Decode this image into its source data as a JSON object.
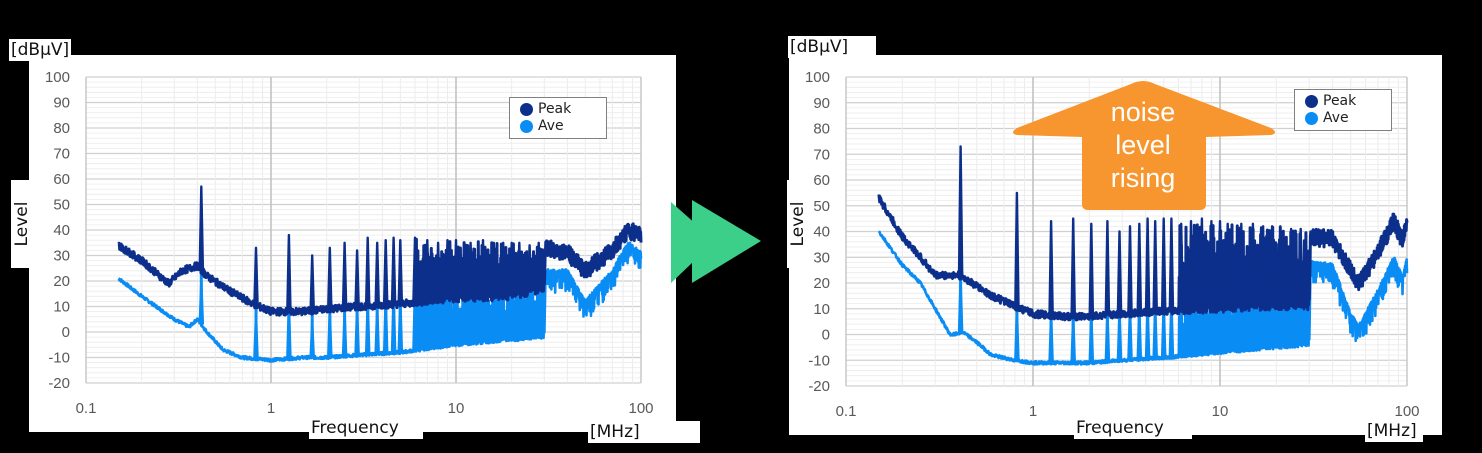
{
  "colors": {
    "peak": "#0d2f8c",
    "ave": "#0a8cf5",
    "grid_major": "#d0d0d0",
    "grid_minor": "#ececec",
    "arrow_between": "#3bcf89",
    "noise_arrow": "#f7962f"
  },
  "left_chart": {
    "y_unit": "[dBμV]",
    "y_axis_label": "Level",
    "x_axis_label": "Frequency",
    "x_unit": "[MHz]",
    "y_ticks": [
      "100",
      "90",
      "80",
      "70",
      "60",
      "50",
      "40",
      "30",
      "20",
      "10",
      "0",
      "-10",
      "-20"
    ],
    "x_ticks": [
      "0.1",
      "1",
      "10",
      "100"
    ],
    "legend": [
      {
        "label": "Peak"
      },
      {
        "label": "Ave"
      }
    ]
  },
  "right_chart": {
    "y_unit": "[dBμV]",
    "y_axis_label": "Level",
    "x_axis_label": "Frequency",
    "x_unit": "[MHz]",
    "y_ticks": [
      "100",
      "90",
      "80",
      "70",
      "60",
      "50",
      "40",
      "30",
      "20",
      "10",
      "0",
      "-10",
      "-20"
    ],
    "x_ticks": [
      "0.1",
      "1",
      "10",
      "100"
    ],
    "legend": [
      {
        "label": "Peak"
      },
      {
        "label": "Ave"
      }
    ],
    "annotation": {
      "line1": "noise",
      "line2": "level",
      "line3": "rising"
    }
  },
  "chart_data": [
    {
      "type": "line",
      "title": "Conducted noise spectrum (before)",
      "xlabel": "Frequency [MHz]",
      "ylabel": "Level [dBμV]",
      "xscale": "log",
      "xlim": [
        0.1,
        100
      ],
      "ylim": [
        -20,
        100
      ],
      "grid": true,
      "legend_position": "upper right",
      "series": [
        {
          "name": "Peak",
          "baseline": [
            [
              0.15,
              34
            ],
            [
              0.2,
              28
            ],
            [
              0.28,
              19
            ],
            [
              0.33,
              24
            ],
            [
              0.4,
              26
            ],
            [
              0.45,
              22
            ],
            [
              0.6,
              16
            ],
            [
              0.8,
              11
            ],
            [
              1.0,
              8
            ],
            [
              1.5,
              8
            ],
            [
              2,
              9
            ],
            [
              3,
              10
            ],
            [
              5,
              11
            ],
            [
              10,
              13
            ],
            [
              20,
              14
            ],
            [
              30,
              17
            ],
            [
              30.5,
              35
            ],
            [
              40,
              33
            ],
            [
              50,
              26
            ],
            [
              70,
              34
            ],
            [
              85,
              42
            ],
            [
              100,
              40
            ]
          ],
          "peaks": [
            [
              0.42,
              57
            ],
            [
              0.83,
              33
            ],
            [
              1.25,
              38
            ],
            [
              1.67,
              30
            ],
            [
              2.08,
              33
            ],
            [
              2.5,
              35
            ],
            [
              2.92,
              32
            ],
            [
              3.33,
              37
            ],
            [
              3.75,
              35
            ],
            [
              4.17,
              36
            ],
            [
              4.6,
              37
            ],
            [
              5.0,
              36
            ],
            [
              6,
              37
            ],
            [
              7,
              36
            ],
            [
              8,
              35
            ],
            [
              9,
              36
            ],
            [
              10,
              36
            ],
            [
              12,
              35
            ],
            [
              14,
              36
            ],
            [
              16,
              35
            ],
            [
              18,
              35
            ],
            [
              20,
              35
            ],
            [
              22,
              35
            ],
            [
              25,
              34
            ],
            [
              28,
              35
            ]
          ]
        },
        {
          "name": "Ave",
          "baseline": [
            [
              0.15,
              21
            ],
            [
              0.2,
              14
            ],
            [
              0.3,
              5
            ],
            [
              0.36,
              2
            ],
            [
              0.4,
              5
            ],
            [
              0.45,
              0
            ],
            [
              0.55,
              -7
            ],
            [
              0.7,
              -10
            ],
            [
              1.0,
              -11
            ],
            [
              1.5,
              -10
            ],
            [
              2,
              -10
            ],
            [
              3,
              -9
            ],
            [
              5,
              -8
            ],
            [
              10,
              -5
            ],
            [
              20,
              -3
            ],
            [
              30,
              -2
            ],
            [
              30.5,
              24
            ],
            [
              40,
              24
            ],
            [
              50,
              12
            ],
            [
              70,
              24
            ],
            [
              85,
              35
            ],
            [
              100,
              31
            ]
          ],
          "peaks": [
            [
              0.42,
              20
            ],
            [
              0.83,
              7
            ],
            [
              1.25,
              12
            ],
            [
              1.67,
              4
            ],
            [
              2.08,
              9
            ],
            [
              2.5,
              8
            ],
            [
              2.92,
              10
            ],
            [
              3.33,
              13
            ],
            [
              3.75,
              10
            ],
            [
              4.17,
              14
            ],
            [
              4.6,
              16
            ],
            [
              5.0,
              14
            ],
            [
              6,
              18
            ],
            [
              7,
              17
            ],
            [
              8,
              19
            ],
            [
              9,
              20
            ],
            [
              10,
              21
            ],
            [
              12,
              20
            ],
            [
              14,
              22
            ],
            [
              16,
              21
            ],
            [
              18,
              22
            ],
            [
              20,
              22
            ],
            [
              22,
              23
            ],
            [
              25,
              22
            ],
            [
              28,
              23
            ]
          ]
        }
      ]
    },
    {
      "type": "line",
      "title": "Conducted noise spectrum (after, noise level rising)",
      "xlabel": "Frequency [MHz]",
      "ylabel": "Level [dBμV]",
      "xscale": "log",
      "xlim": [
        0.1,
        100
      ],
      "ylim": [
        -20,
        100
      ],
      "grid": true,
      "legend_position": "upper right",
      "annotations": [
        "noise level rising"
      ],
      "series": [
        {
          "name": "Peak",
          "baseline": [
            [
              0.15,
              53
            ],
            [
              0.2,
              38
            ],
            [
              0.25,
              30
            ],
            [
              0.3,
              23
            ],
            [
              0.35,
              23
            ],
            [
              0.4,
              23
            ],
            [
              0.45,
              21
            ],
            [
              0.6,
              15
            ],
            [
              0.8,
              11
            ],
            [
              1.0,
              8
            ],
            [
              1.5,
              7
            ],
            [
              2,
              7
            ],
            [
              3,
              8
            ],
            [
              5,
              9
            ],
            [
              10,
              10
            ],
            [
              20,
              11
            ],
            [
              30,
              11
            ],
            [
              30.5,
              40
            ],
            [
              40,
              39
            ],
            [
              50,
              27
            ],
            [
              55,
              21
            ],
            [
              70,
              34
            ],
            [
              85,
              46
            ],
            [
              95,
              38
            ],
            [
              100,
              46
            ]
          ],
          "peaks": [
            [
              0.41,
              73
            ],
            [
              0.82,
              55
            ],
            [
              1.25,
              44
            ],
            [
              1.64,
              45
            ],
            [
              2.05,
              43
            ],
            [
              2.5,
              44
            ],
            [
              2.9,
              40
            ],
            [
              3.3,
              42
            ],
            [
              3.7,
              43
            ],
            [
              4.1,
              45
            ],
            [
              4.5,
              44
            ],
            [
              5.0,
              45
            ],
            [
              5.5,
              45
            ],
            [
              6.2,
              43
            ],
            [
              7,
              44
            ],
            [
              8,
              45
            ],
            [
              9,
              44
            ],
            [
              10,
              44
            ],
            [
              11,
              43
            ],
            [
              13,
              43
            ],
            [
              15,
              43
            ],
            [
              17,
              42
            ],
            [
              19,
              42
            ],
            [
              21,
              42
            ],
            [
              24,
              41
            ],
            [
              27,
              41
            ]
          ]
        },
        {
          "name": "Ave",
          "baseline": [
            [
              0.15,
              40
            ],
            [
              0.2,
              27
            ],
            [
              0.25,
              20
            ],
            [
              0.3,
              10
            ],
            [
              0.36,
              0
            ],
            [
              0.38,
              0
            ],
            [
              0.42,
              1
            ],
            [
              0.5,
              -3
            ],
            [
              0.6,
              -8
            ],
            [
              0.8,
              -10
            ],
            [
              1.0,
              -11
            ],
            [
              1.5,
              -11
            ],
            [
              2,
              -11
            ],
            [
              3,
              -10
            ],
            [
              5,
              -9
            ],
            [
              10,
              -7
            ],
            [
              20,
              -5
            ],
            [
              30,
              -4
            ],
            [
              30.5,
              28
            ],
            [
              40,
              27
            ],
            [
              50,
              8
            ],
            [
              55,
              3
            ],
            [
              70,
              17
            ],
            [
              85,
              30
            ],
            [
              95,
              22
            ],
            [
              100,
              30
            ]
          ],
          "peaks": [
            [
              0.41,
              22
            ],
            [
              0.82,
              10
            ],
            [
              1.25,
              8
            ],
            [
              1.64,
              8
            ],
            [
              2.05,
              9
            ],
            [
              2.5,
              10
            ],
            [
              2.9,
              10
            ],
            [
              3.3,
              11
            ],
            [
              3.7,
              11
            ],
            [
              4.1,
              12
            ],
            [
              4.5,
              12
            ],
            [
              5.0,
              13
            ],
            [
              5.5,
              14
            ],
            [
              6.2,
              14
            ],
            [
              7,
              15
            ],
            [
              8,
              16
            ],
            [
              9,
              16
            ],
            [
              10,
              17
            ],
            [
              11,
              17
            ],
            [
              13,
              18
            ],
            [
              15,
              18
            ],
            [
              17,
              18
            ],
            [
              19,
              19
            ],
            [
              21,
              19
            ],
            [
              24,
              19
            ],
            [
              27,
              19
            ]
          ]
        }
      ]
    }
  ]
}
